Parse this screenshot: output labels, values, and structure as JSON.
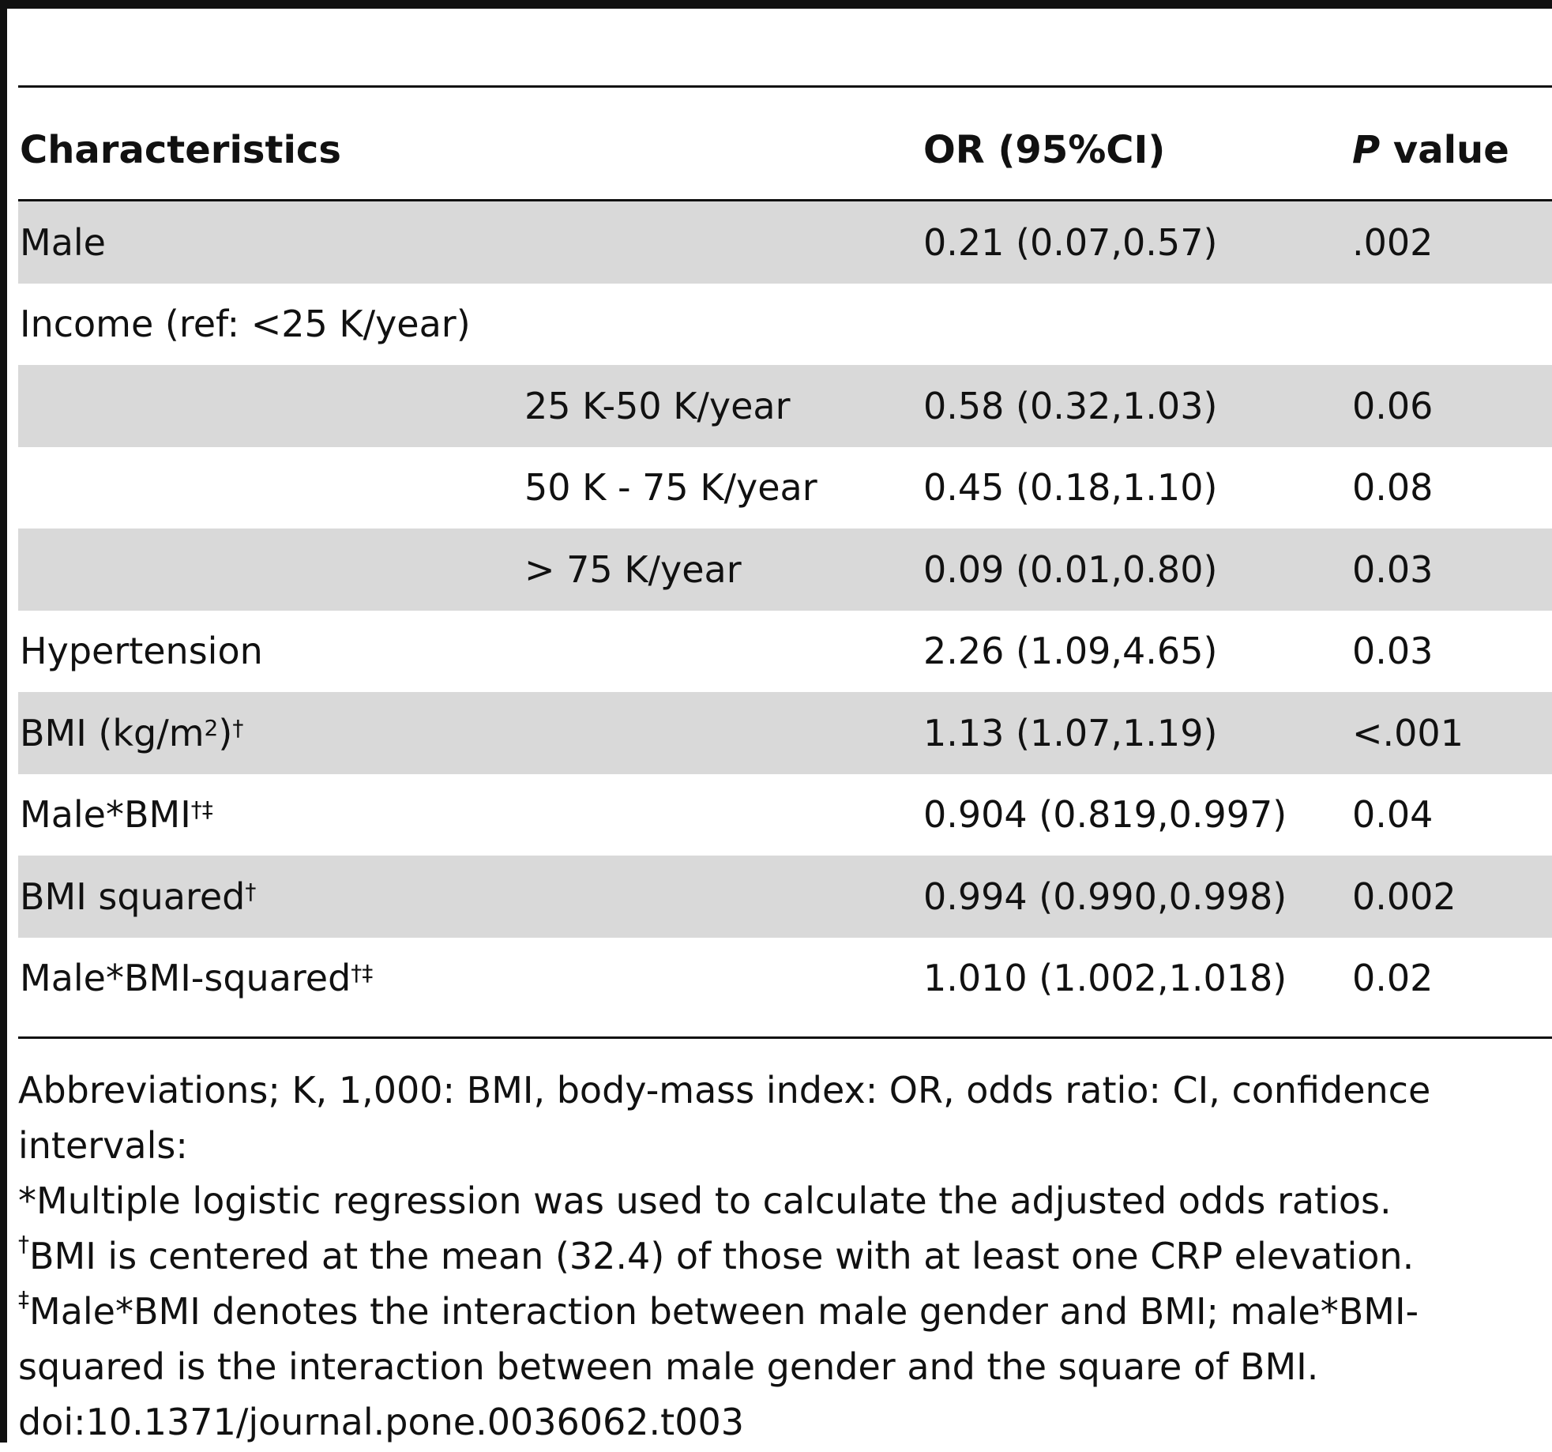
{
  "table": {
    "headers": {
      "characteristics": "Characteristics",
      "or": "OR (95%CI)",
      "p_italic": "P",
      "p_rest": " value"
    },
    "rows": [
      {
        "label": "Male",
        "sub": "",
        "sup": "",
        "or": "0.21 (0.07,0.57)",
        "p": ".002",
        "shaded": true
      },
      {
        "label": "Income (ref: <25 K/year)",
        "sub": "",
        "sup": "",
        "or": "",
        "p": "",
        "shaded": false
      },
      {
        "label": "",
        "sub": "25 K-50 K/year",
        "sup": "",
        "or": "0.58 (0.32,1.03)",
        "p": "0.06",
        "shaded": true
      },
      {
        "label": "",
        "sub": "50 K - 75 K/year",
        "sup": "",
        "or": "0.45 (0.18,1.10)",
        "p": "0.08",
        "shaded": false
      },
      {
        "label": "",
        "sub": "> 75 K/year",
        "sup": "",
        "or": "0.09 (0.01,0.80)",
        "p": "0.03",
        "shaded": true
      },
      {
        "label": "Hypertension",
        "sub": "",
        "sup": "",
        "or": "2.26 (1.09,4.65)",
        "p": "0.03",
        "shaded": false
      },
      {
        "label": "BMI (kg/m",
        "label_sup": "2",
        "label_tail": ")",
        "sub": "",
        "sup": "†",
        "or": "1.13 (1.07,1.19)",
        "p": "<.001",
        "shaded": true
      },
      {
        "label": "Male*BMI",
        "sub": "",
        "sup": "†‡",
        "or": "0.904 (0.819,0.997)",
        "p": "0.04",
        "shaded": false
      },
      {
        "label": "BMI squared",
        "sub": "",
        "sup": "†",
        "or": "0.994 (0.990,0.998)",
        "p": "0.002",
        "shaded": true
      },
      {
        "label": "Male*BMI-squared",
        "sub": "",
        "sup": "†‡",
        "or": "1.010 (1.002,1.018)",
        "p": "0.02",
        "shaded": false
      }
    ]
  },
  "footnotes": {
    "abbrev_1": "Abbreviations; K, 1,000: BMI, body-mass index: OR, odds ratio: CI, confidence",
    "abbrev_2": "intervals:",
    "note_star": "*Multiple logistic regression was used to calculate the adjusted odds ratios.",
    "note_dagger_mark": "†",
    "note_dagger": "BMI is centered at the mean (32.4) of those with at least one CRP elevation.",
    "note_ddagger_mark": "‡",
    "note_ddagger_1": "Male*BMI denotes the interaction between male gender and BMI; male*BMI-",
    "note_ddagger_2": "squared is the interaction between male gender and the square of BMI.",
    "doi": "doi:10.1371/journal.pone.0036062.t003"
  }
}
